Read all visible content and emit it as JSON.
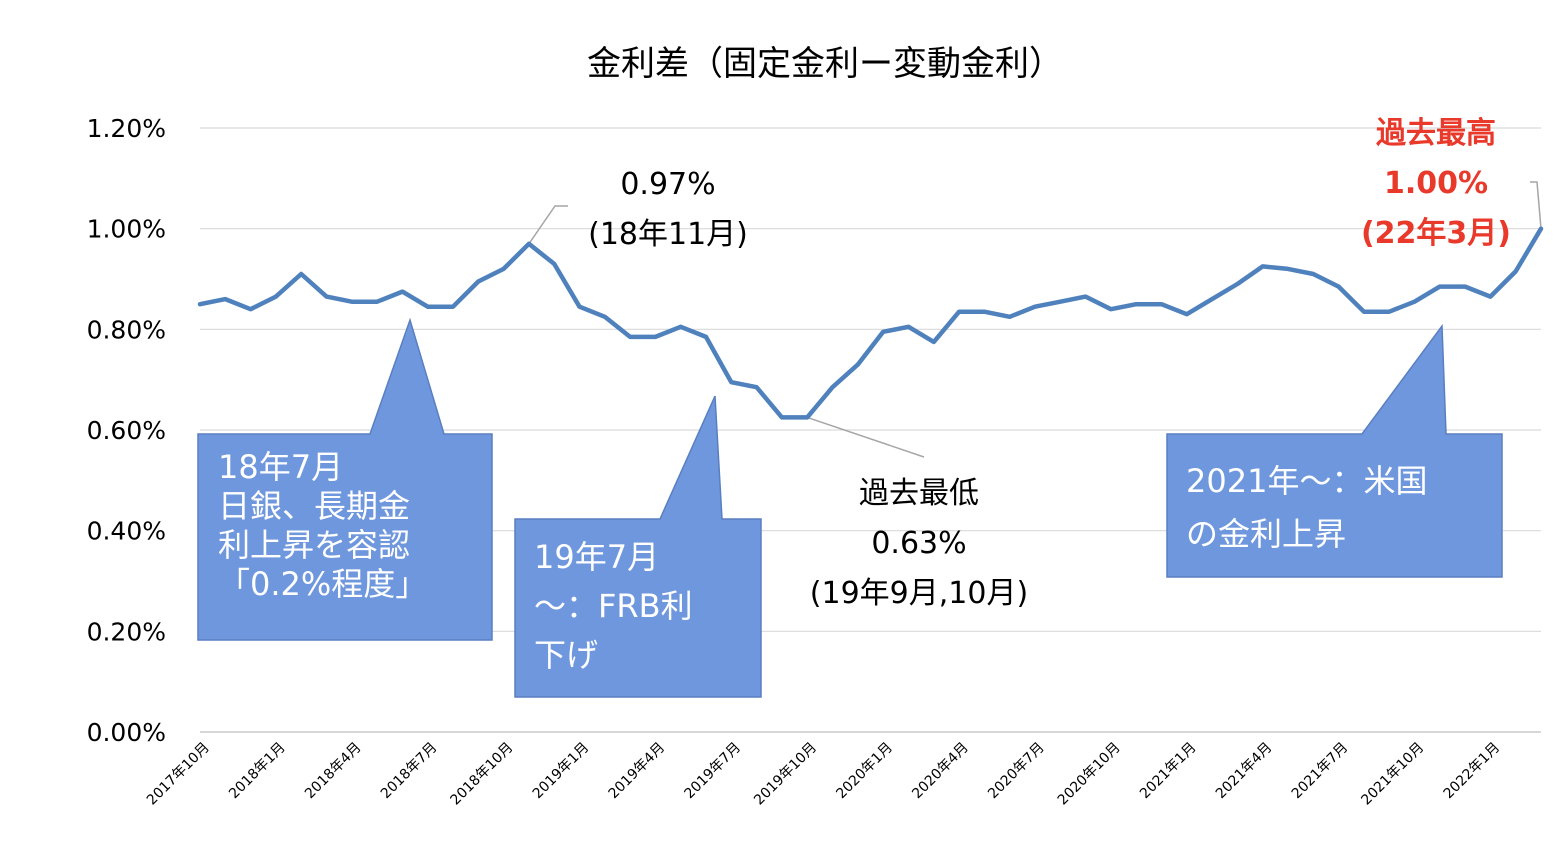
{
  "chart_data": {
    "type": "line",
    "title": "金利差（固定金利ー変動金利）",
    "xlabel": "",
    "ylabel": "",
    "ylim": [
      0,
      1.2
    ],
    "yticks": [
      "0.00%",
      "0.20%",
      "0.40%",
      "0.60%",
      "0.80%",
      "1.00%",
      "1.20%"
    ],
    "grid": true,
    "line_color": "#4f81bd",
    "callout_color": "#6f97dd",
    "highlight_color": "#e8392b",
    "x": [
      "2017年10月",
      "2017年11月",
      "2017年12月",
      "2018年1月",
      "2018年2月",
      "2018年3月",
      "2018年4月",
      "2018年5月",
      "2018年6月",
      "2018年7月",
      "2018年8月",
      "2018年9月",
      "2018年10月",
      "2018年11月",
      "2018年12月",
      "2019年1月",
      "2019年2月",
      "2019年3月",
      "2019年4月",
      "2019年5月",
      "2019年6月",
      "2019年7月",
      "2019年8月",
      "2019年9月",
      "2019年10月",
      "2019年11月",
      "2019年12月",
      "2020年1月",
      "2020年2月",
      "2020年3月",
      "2020年4月",
      "2020年5月",
      "2020年6月",
      "2020年7月",
      "2020年8月",
      "2020年9月",
      "2020年10月",
      "2020年11月",
      "2020年12月",
      "2021年1月",
      "2021年2月",
      "2021年3月",
      "2021年4月",
      "2021年5月",
      "2021年6月",
      "2021年7月",
      "2021年8月",
      "2021年9月",
      "2021年10月",
      "2021年11月",
      "2021年12月",
      "2022年1月",
      "2022年2月",
      "2022年3月"
    ],
    "xtick_labels": [
      "2017年10月",
      "2018年1月",
      "2018年4月",
      "2018年7月",
      "2018年10月",
      "2019年1月",
      "2019年4月",
      "2019年7月",
      "2019年10月",
      "2020年1月",
      "2020年4月",
      "2020年7月",
      "2020年10月",
      "2021年1月",
      "2021年4月",
      "2021年7月",
      "2021年10月",
      "2022年1月"
    ],
    "series": [
      {
        "values": [
          0.85,
          0.86,
          0.84,
          0.865,
          0.91,
          0.865,
          0.855,
          0.855,
          0.875,
          0.845,
          0.845,
          0.895,
          0.92,
          0.97,
          0.93,
          0.845,
          0.825,
          0.785,
          0.785,
          0.805,
          0.785,
          0.695,
          0.685,
          0.625,
          0.625,
          0.685,
          0.73,
          0.795,
          0.805,
          0.775,
          0.835,
          0.835,
          0.825,
          0.845,
          0.855,
          0.865,
          0.84,
          0.85,
          0.85,
          0.83,
          0.86,
          0.89,
          0.925,
          0.92,
          0.91,
          0.885,
          0.835,
          0.835,
          0.855,
          0.885,
          0.885,
          0.865,
          0.915,
          1.0
        ]
      }
    ],
    "annotations": {
      "peak": {
        "lines": [
          "0.97%",
          "(18年11月)"
        ]
      },
      "low": {
        "lines": [
          "過去最低",
          "0.63%",
          "(19年9月,10月)"
        ]
      },
      "high": {
        "lines": [
          "過去最高",
          "1.00%",
          "(22年3月)"
        ]
      }
    },
    "callouts": [
      {
        "lines": [
          "18年7月",
          "日銀、長期金",
          "利上昇を容認",
          "「0.2%程度」"
        ]
      },
      {
        "lines": [
          "19年7月",
          "～：FRB利",
          "下げ"
        ]
      },
      {
        "lines": [
          "2021年～：米国",
          "の金利上昇"
        ]
      }
    ]
  }
}
